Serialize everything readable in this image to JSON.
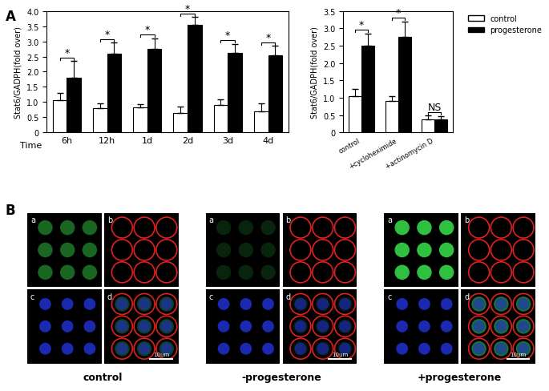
{
  "panel_labels": [
    "A",
    "B"
  ],
  "chart_data": [
    {
      "type": "bar",
      "x_label": "Time",
      "y_label": "Stat6/GADPH(fold over)",
      "categories": [
        "6h",
        "12h",
        "1d",
        "2d",
        "3d",
        "4d"
      ],
      "series": [
        {
          "name": "control",
          "color": "#ffffff",
          "values": [
            1.05,
            0.8,
            0.82,
            0.65,
            0.9,
            0.7
          ],
          "errors": [
            0.25,
            0.15,
            0.1,
            0.2,
            0.2,
            0.25
          ]
        },
        {
          "name": "progesterone",
          "color": "#000000",
          "values": [
            1.8,
            2.6,
            2.75,
            3.55,
            2.62,
            2.55
          ],
          "errors": [
            0.55,
            0.35,
            0.35,
            0.25,
            0.3,
            0.3
          ]
        }
      ],
      "ylim": [
        0,
        4
      ],
      "yticks": [
        0,
        0.5,
        {
          "value": 1,
          "label": "1.0"
        },
        1.5,
        {
          "value": 2,
          "label": "2.0"
        },
        2.5,
        {
          "value": 3,
          "label": "3.0"
        },
        3.5,
        {
          "value": 4,
          "label": "4.0"
        }
      ],
      "annotations": [
        "*",
        "*",
        "*",
        "*",
        "*",
        "*"
      ]
    },
    {
      "type": "bar",
      "y_label": "Stat6/GADPH(fold over)",
      "categories": [
        "control",
        "+cycloheximide",
        "+actinomycin D"
      ],
      "series": [
        {
          "name": "control",
          "color": "#ffffff",
          "values": [
            1.05,
            0.9,
            0.38
          ],
          "errors": [
            0.2,
            0.15,
            0.1
          ]
        },
        {
          "name": "progesterone",
          "color": "#000000",
          "values": [
            2.5,
            2.75,
            0.38
          ],
          "errors": [
            0.35,
            0.45,
            0.08
          ]
        }
      ],
      "ylim": [
        0,
        3.5
      ],
      "yticks": [
        0,
        0.5,
        {
          "value": 1,
          "label": "1.0"
        },
        1.5,
        {
          "value": 2,
          "label": "2.0"
        },
        2.5,
        {
          "value": 3,
          "label": "3.0"
        },
        3.5
      ],
      "annotations": [
        "*",
        "*",
        "NS"
      ],
      "legend": "upper right"
    }
  ],
  "images": {
    "groups": [
      "control",
      "-progesterone",
      "+progesterone"
    ],
    "subpanels": [
      "a",
      "b",
      "c",
      "d"
    ],
    "scale_bar": "10um"
  }
}
